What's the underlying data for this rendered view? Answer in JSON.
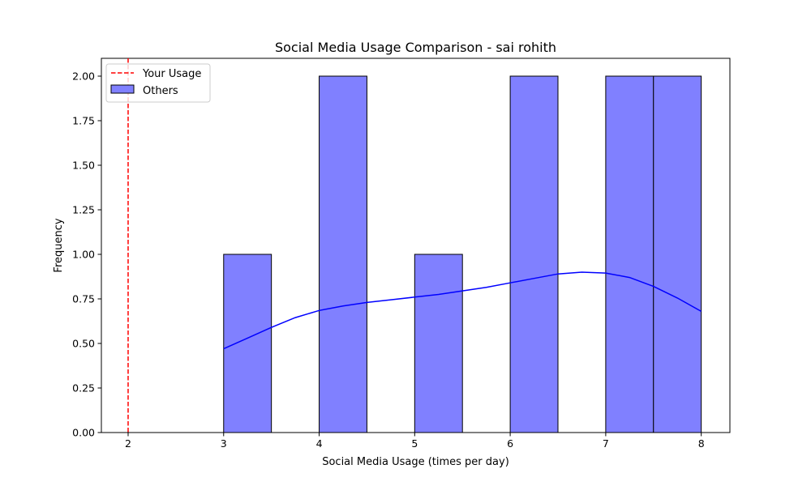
{
  "chart_data": {
    "type": "bar",
    "title": "Social Media Usage Comparison - sai rohith",
    "xlabel": "Social Media Usage (times per day)",
    "ylabel": "Frequency",
    "xlim": [
      1.72,
      8.3
    ],
    "ylim": [
      0,
      2.1
    ],
    "x_ticks": [
      2,
      3,
      4,
      5,
      6,
      7,
      8
    ],
    "x_tick_labels": [
      "2",
      "3",
      "4",
      "5",
      "6",
      "7",
      "8"
    ],
    "y_ticks": [
      0,
      0.25,
      0.5,
      0.75,
      1.0,
      1.25,
      1.5,
      1.75,
      2.0
    ],
    "y_tick_labels": [
      "0.00",
      "0.25",
      "0.50",
      "0.75",
      "1.00",
      "1.25",
      "1.50",
      "1.75",
      "2.00"
    ],
    "series": [
      {
        "name": "Others",
        "kind": "histogram",
        "bin_width": 0.5,
        "bins": [
          {
            "x0": 3.0,
            "x1": 3.5,
            "count": 1
          },
          {
            "x0": 4.0,
            "x1": 4.5,
            "count": 2
          },
          {
            "x0": 5.0,
            "x1": 5.5,
            "count": 1
          },
          {
            "x0": 6.0,
            "x1": 6.5,
            "count": 2
          },
          {
            "x0": 7.0,
            "x1": 7.5,
            "count": 2
          },
          {
            "x0": 7.5,
            "x1": 8.0,
            "count": 2
          }
        ],
        "color": "#8080ff",
        "edge_color": "#000000"
      },
      {
        "kind": "kde",
        "color": "#0000ff",
        "x": [
          3.0,
          3.25,
          3.5,
          3.75,
          4.0,
          4.25,
          4.5,
          4.75,
          5.0,
          5.25,
          5.5,
          5.75,
          6.0,
          6.25,
          6.5,
          6.75,
          7.0,
          7.25,
          7.5,
          7.75,
          8.0
        ],
        "y": [
          0.47,
          0.53,
          0.59,
          0.645,
          0.685,
          0.71,
          0.73,
          0.745,
          0.76,
          0.775,
          0.795,
          0.815,
          0.84,
          0.865,
          0.89,
          0.9,
          0.895,
          0.87,
          0.82,
          0.755,
          0.68
        ]
      },
      {
        "name": "Your Usage",
        "kind": "vline",
        "x": 2,
        "color": "#ff0000",
        "style": "dashed"
      }
    ],
    "legend": {
      "placement": "top-left",
      "entries": [
        "Your Usage",
        "Others"
      ]
    },
    "grid": false
  }
}
